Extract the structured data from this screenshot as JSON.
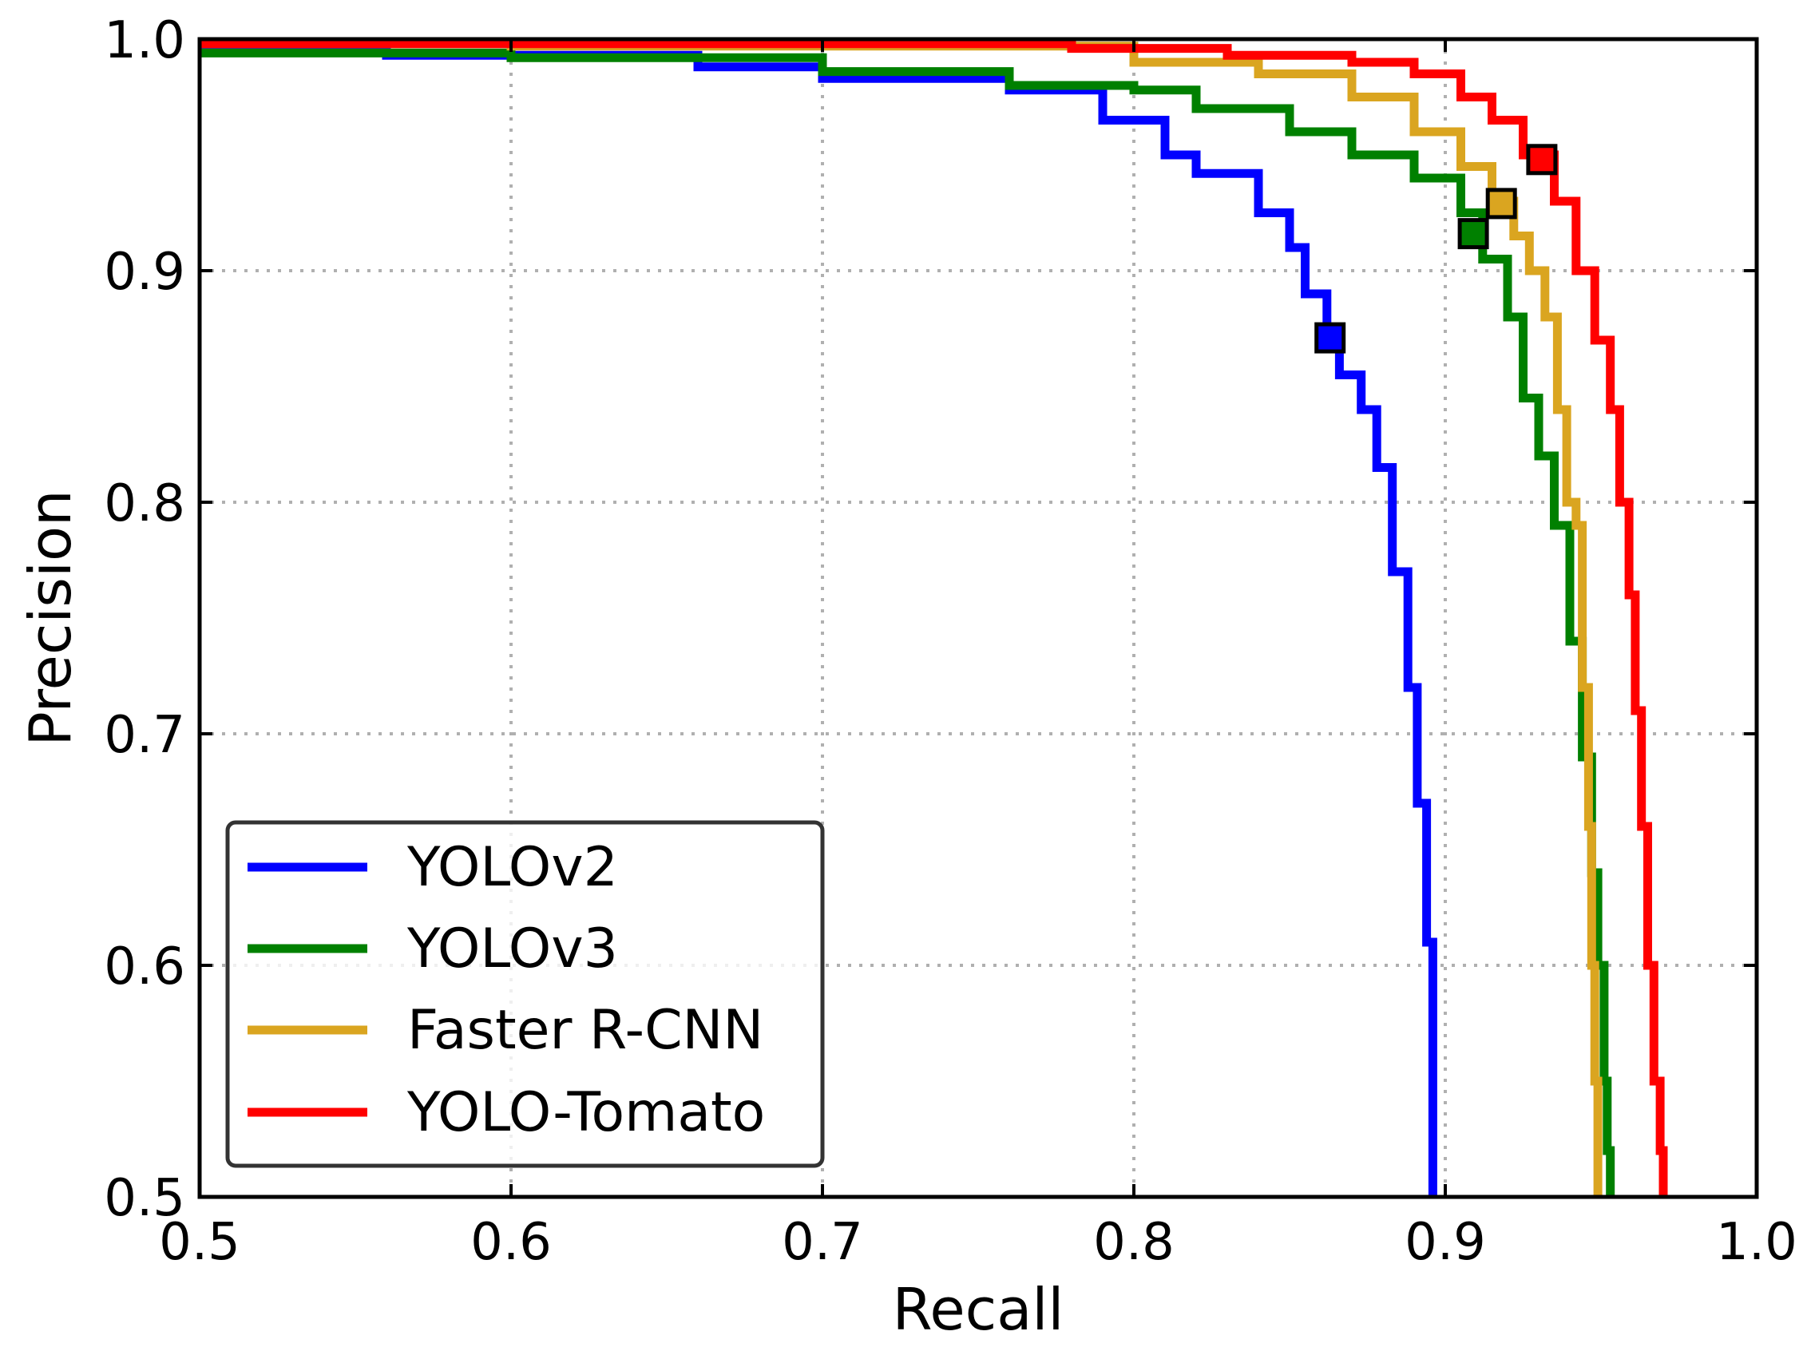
{
  "chart_data": {
    "type": "line",
    "title": "",
    "xlabel": "Recall",
    "ylabel": "Precision",
    "xlim": [
      0.5,
      1.0
    ],
    "ylim": [
      0.5,
      1.0
    ],
    "xticks": [
      "0.5",
      "0.6",
      "0.7",
      "0.8",
      "0.9",
      "1.0"
    ],
    "yticks": [
      "0.5",
      "0.6",
      "0.7",
      "0.8",
      "0.9",
      "1.0"
    ],
    "xtick_values": [
      0.5,
      0.6,
      0.7,
      0.8,
      0.9,
      1.0
    ],
    "ytick_values": [
      0.5,
      0.6,
      0.7,
      0.8,
      0.9,
      1.0
    ],
    "grid": true,
    "legend_position": "lower-left",
    "series": [
      {
        "name": "YOLOv2",
        "color": "#0000ff",
        "x": [
          0.5,
          0.56,
          0.65,
          0.66,
          0.7,
          0.76,
          0.79,
          0.81,
          0.82,
          0.84,
          0.85,
          0.855,
          0.862,
          0.866,
          0.873,
          0.878,
          0.883,
          0.888,
          0.891,
          0.894,
          0.896,
          0.896
        ],
        "y": [
          0.995,
          0.993,
          0.993,
          0.988,
          0.983,
          0.978,
          0.965,
          0.95,
          0.942,
          0.925,
          0.91,
          0.89,
          0.871,
          0.855,
          0.84,
          0.815,
          0.77,
          0.72,
          0.67,
          0.61,
          0.59,
          0.5
        ],
        "marker": {
          "x": 0.863,
          "y": 0.871
        }
      },
      {
        "name": "YOLOv3",
        "color": "#008000",
        "x": [
          0.5,
          0.6,
          0.7,
          0.76,
          0.8,
          0.82,
          0.85,
          0.87,
          0.89,
          0.905,
          0.912,
          0.92,
          0.925,
          0.93,
          0.935,
          0.94,
          0.944,
          0.947,
          0.949,
          0.951,
          0.952,
          0.953
        ],
        "y": [
          0.994,
          0.992,
          0.986,
          0.98,
          0.978,
          0.97,
          0.96,
          0.95,
          0.94,
          0.925,
          0.905,
          0.88,
          0.845,
          0.82,
          0.79,
          0.74,
          0.69,
          0.64,
          0.6,
          0.55,
          0.52,
          0.5
        ],
        "marker": {
          "x": 0.909,
          "y": 0.916
        }
      },
      {
        "name": "Faster R-CNN",
        "color": "#daa520",
        "x": [
          0.5,
          0.6,
          0.7,
          0.75,
          0.8,
          0.84,
          0.87,
          0.89,
          0.905,
          0.915,
          0.922,
          0.927,
          0.932,
          0.936,
          0.939,
          0.942,
          0.944,
          0.946,
          0.947,
          0.948,
          0.949,
          0.949
        ],
        "y": [
          0.998,
          0.997,
          0.997,
          0.997,
          0.99,
          0.985,
          0.975,
          0.96,
          0.945,
          0.93,
          0.915,
          0.9,
          0.88,
          0.84,
          0.8,
          0.79,
          0.72,
          0.66,
          0.6,
          0.55,
          0.52,
          0.5
        ],
        "marker": {
          "x": 0.918,
          "y": 0.929
        }
      },
      {
        "name": "YOLO-Tomato",
        "color": "#ff0000",
        "x": [
          0.5,
          0.6,
          0.7,
          0.78,
          0.83,
          0.87,
          0.89,
          0.905,
          0.915,
          0.925,
          0.935,
          0.942,
          0.948,
          0.953,
          0.956,
          0.959,
          0.961,
          0.963,
          0.965,
          0.967,
          0.969,
          0.97
        ],
        "y": [
          0.998,
          0.998,
          0.998,
          0.996,
          0.993,
          0.99,
          0.985,
          0.975,
          0.965,
          0.95,
          0.93,
          0.9,
          0.87,
          0.84,
          0.8,
          0.76,
          0.71,
          0.66,
          0.6,
          0.55,
          0.52,
          0.5
        ],
        "marker": {
          "x": 0.931,
          "y": 0.948
        }
      }
    ]
  }
}
